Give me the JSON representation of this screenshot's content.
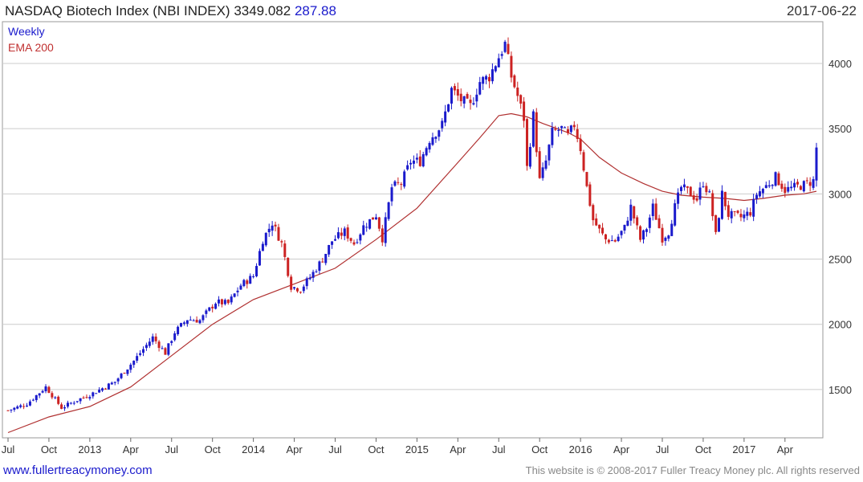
{
  "header": {
    "title": "NASDAQ Biotech Index (NBI INDEX) 3349.082",
    "change": "287.88",
    "date": "2017-06-22"
  },
  "legend": {
    "weekly": "Weekly",
    "ema": "EMA 200"
  },
  "footer": {
    "site": "www.fullertreacymoney.com",
    "copyright": "This website is © 2008-2017 Fuller Treacy Money plc. All rights reserved"
  },
  "colors": {
    "up": "#1a1acc",
    "down": "#cc2222",
    "ema": "#b03030",
    "grid": "#cccccc"
  },
  "chart_data": {
    "type": "candlestick",
    "y_ticks": [
      1500,
      2000,
      2500,
      3000,
      3500,
      4000
    ],
    "ylim": [
      1130,
      4320
    ],
    "x_ticks": [
      {
        "label": "Jul",
        "t": 0
      },
      {
        "label": "Oct",
        "t": 13
      },
      {
        "label": "2013",
        "t": 26
      },
      {
        "label": "Apr",
        "t": 39
      },
      {
        "label": "Jul",
        "t": 52
      },
      {
        "label": "Oct",
        "t": 65
      },
      {
        "label": "2014",
        "t": 78
      },
      {
        "label": "Apr",
        "t": 91
      },
      {
        "label": "Jul",
        "t": 104
      },
      {
        "label": "Oct",
        "t": 117
      },
      {
        "label": "2015",
        "t": 130
      },
      {
        "label": "Apr",
        "t": 143
      },
      {
        "label": "Jul",
        "t": 156
      },
      {
        "label": "Oct",
        "t": 169
      },
      {
        "label": "2016",
        "t": 182
      },
      {
        "label": "Apr",
        "t": 195
      },
      {
        "label": "Jul",
        "t": 208
      },
      {
        "label": "Oct",
        "t": 221
      },
      {
        "label": "2017",
        "t": 234
      },
      {
        "label": "Apr",
        "t": 247
      }
    ],
    "close_path": [
      [
        0,
        1340
      ],
      [
        6,
        1390
      ],
      [
        12,
        1520
      ],
      [
        17,
        1360
      ],
      [
        22,
        1420
      ],
      [
        26,
        1460
      ],
      [
        30,
        1510
      ],
      [
        34,
        1560
      ],
      [
        40,
        1720
      ],
      [
        46,
        1900
      ],
      [
        50,
        1780
      ],
      [
        53,
        1940
      ],
      [
        57,
        2040
      ],
      [
        61,
        2030
      ],
      [
        66,
        2170
      ],
      [
        70,
        2160
      ],
      [
        74,
        2300
      ],
      [
        78,
        2370
      ],
      [
        81,
        2650
      ],
      [
        84,
        2780
      ],
      [
        87,
        2620
      ],
      [
        90,
        2290
      ],
      [
        93,
        2270
      ],
      [
        96,
        2360
      ],
      [
        100,
        2500
      ],
      [
        103,
        2640
      ],
      [
        107,
        2710
      ],
      [
        110,
        2620
      ],
      [
        113,
        2750
      ],
      [
        117,
        2840
      ],
      [
        119,
        2660
      ],
      [
        122,
        3050
      ],
      [
        125,
        3080
      ],
      [
        128,
        3250
      ],
      [
        131,
        3250
      ],
      [
        134,
        3420
      ],
      [
        138,
        3530
      ],
      [
        141,
        3800
      ],
      [
        144,
        3720
      ],
      [
        147,
        3670
      ],
      [
        150,
        3860
      ],
      [
        153,
        3900
      ],
      [
        156,
        4050
      ],
      [
        158,
        4150
      ],
      [
        160,
        3900
      ],
      [
        162,
        3750
      ],
      [
        164,
        3580
      ],
      [
        165,
        3200
      ],
      [
        167,
        3600
      ],
      [
        169,
        3100
      ],
      [
        171,
        3250
      ],
      [
        173,
        3470
      ],
      [
        176,
        3500
      ],
      [
        178,
        3440
      ],
      [
        180,
        3530
      ],
      [
        182,
        3350
      ],
      [
        184,
        3050
      ],
      [
        186,
        2800
      ],
      [
        188,
        2720
      ],
      [
        190,
        2650
      ],
      [
        193,
        2640
      ],
      [
        196,
        2740
      ],
      [
        198,
        2900
      ],
      [
        201,
        2650
      ],
      [
        203,
        2740
      ],
      [
        205,
        2900
      ],
      [
        208,
        2660
      ],
      [
        210,
        2710
      ],
      [
        212,
        2900
      ],
      [
        214,
        3050
      ],
      [
        216,
        3020
      ],
      [
        219,
        2960
      ],
      [
        221,
        3090
      ],
      [
        223,
        2990
      ],
      [
        225,
        2680
      ],
      [
        227,
        3000
      ],
      [
        229,
        2840
      ],
      [
        231,
        2830
      ],
      [
        233,
        2820
      ],
      [
        236,
        2860
      ],
      [
        238,
        3000
      ],
      [
        241,
        3060
      ],
      [
        244,
        3130
      ],
      [
        247,
        3030
      ],
      [
        250,
        3050
      ],
      [
        253,
        3070
      ],
      [
        256,
        3100
      ],
      [
        257,
        3349
      ]
    ],
    "ema_200": [
      [
        0,
        1170
      ],
      [
        13,
        1290
      ],
      [
        26,
        1370
      ],
      [
        39,
        1520
      ],
      [
        52,
        1760
      ],
      [
        65,
        2000
      ],
      [
        78,
        2190
      ],
      [
        91,
        2310
      ],
      [
        104,
        2430
      ],
      [
        117,
        2650
      ],
      [
        130,
        2890
      ],
      [
        143,
        3240
      ],
      [
        150,
        3430
      ],
      [
        156,
        3600
      ],
      [
        160,
        3615
      ],
      [
        165,
        3590
      ],
      [
        170,
        3540
      ],
      [
        178,
        3470
      ],
      [
        182,
        3420
      ],
      [
        188,
        3280
      ],
      [
        195,
        3160
      ],
      [
        202,
        3080
      ],
      [
        208,
        3020
      ],
      [
        214,
        2990
      ],
      [
        221,
        2975
      ],
      [
        228,
        2965
      ],
      [
        234,
        2950
      ],
      [
        240,
        2965
      ],
      [
        247,
        2990
      ],
      [
        253,
        3000
      ],
      [
        257,
        3020
      ]
    ]
  }
}
